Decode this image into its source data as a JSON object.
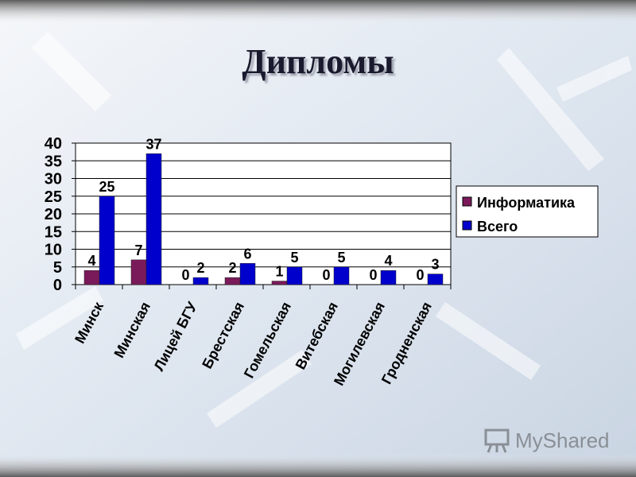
{
  "slide": {
    "title": "Дипломы"
  },
  "watermark": {
    "text": "MyShared"
  },
  "colors": {
    "informatika": "#7a1a5a",
    "vsego": "#0000cc",
    "plot_background": "#ffffff",
    "gridline": "#000000"
  },
  "chart_data": {
    "type": "bar",
    "title": "",
    "xlabel": "",
    "ylabel": "",
    "ylim": [
      0,
      40
    ],
    "yticks": [
      0,
      5,
      10,
      15,
      20,
      25,
      30,
      35,
      40
    ],
    "grid": true,
    "legend_position": "right",
    "categories": [
      "Минск",
      "Минская",
      "Лицей БГУ",
      "Брестская",
      "Гомельская",
      "Витебская",
      "Могилевская",
      "Гродненская"
    ],
    "series": [
      {
        "name": "Информатика",
        "values": [
          4,
          7,
          0,
          2,
          1,
          0,
          0,
          0
        ],
        "color": "#7a1a5a"
      },
      {
        "name": "Всего",
        "values": [
          25,
          37,
          2,
          6,
          5,
          5,
          4,
          3
        ],
        "color": "#0000cc"
      }
    ]
  }
}
